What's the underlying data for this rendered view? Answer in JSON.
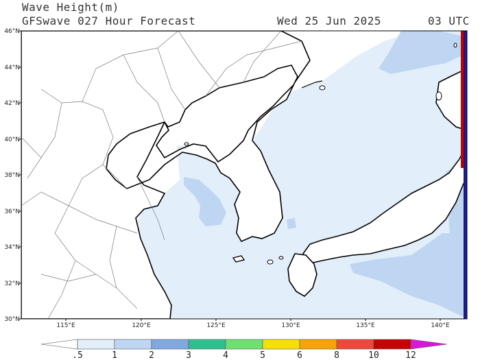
{
  "title": {
    "line1": "Wave Height(m)",
    "line2": "GFSwave 027 Hour Forecast",
    "date": "Wed 25 Jun 2025",
    "time": "03 UTC"
  },
  "map": {
    "lat_labels": [
      "46°N",
      "44°N",
      "42°N",
      "40°N",
      "38°N",
      "36°N",
      "34°N",
      "32°N",
      "30°N"
    ],
    "lon_labels": [
      "115°E",
      "120°E",
      "125°E",
      "130°E",
      "135°E",
      "140°E"
    ],
    "lat_range": [
      30,
      46
    ],
    "lon_range": [
      112,
      142
    ],
    "colors": {
      "land": "#ffffff",
      "sea_calm": "#e2eefa",
      "sea_mid": "#bfd6f3",
      "sea_high": "#7fa9e0",
      "outline": "#000000"
    }
  },
  "colorbar": {
    "labels": [
      ".5",
      "1",
      "2",
      "3",
      "4",
      "5",
      "6",
      "8",
      "10",
      "12"
    ],
    "colors": [
      "#ffffff",
      "#e2eefa",
      "#bfd6f3",
      "#7fa9e0",
      "#2fbf8f",
      "#6fe06f",
      "#f6e000",
      "#f8a400",
      "#f0463c",
      "#c80000",
      "#d818d8"
    ]
  }
}
